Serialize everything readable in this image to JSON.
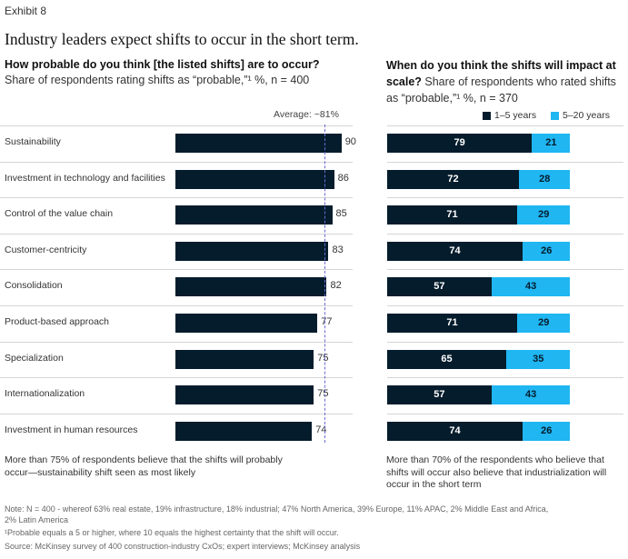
{
  "exhibit": "Exhibit 8",
  "title": "Industry leaders expect shifts to occur in the short term.",
  "left": {
    "question": "How probable do you think [the listed shifts] are to occur?",
    "subtitle": "Share of respondents rating shifts as “probable,”¹ %, n = 400",
    "average_label": "Average: ~81%",
    "footer": "More than 75% of respondents believe that the shifts will probably occur—sustainability shift seen as most likely"
  },
  "right": {
    "question": "When do you think the shifts will impact at scale?",
    "subtitle": " Share of respondents who rated shifts as “probable,”¹ %, n = 370",
    "footer": "More than 70% of the respondents who believe that shifts will occur also believe that industrialization will occur in the short term"
  },
  "notes": {
    "note": "Note: N = 400 - whereof 63% real estate, 19% infrastructure, 18% industrial; 47% North America, 39% Europe, 11% APAC, 2% Middle East and Africa, 2% Latin America",
    "footnote1": "¹Probable equals a 5 or higher, where 10 equals the highest certainty that the shift will occur.",
    "source": "Source: McKinsey survey of 400 construction-industry CxOs; expert interviews; McKinsey analysis"
  },
  "colors": {
    "dark": "#051C2C",
    "light": "#1FB6F2"
  },
  "chart_data": [
    {
      "type": "bar",
      "orientation": "horizontal",
      "title": "How probable do you think [the listed shifts] are to occur?",
      "xlim": [
        0,
        100
      ],
      "average": 81,
      "categories": [
        "Sustainability",
        "Investment in technology and facilities",
        "Control of the value chain",
        "Customer-centricity",
        "Consolidation",
        "Product-based approach",
        "Specialization",
        "Internationalization",
        "Investment in human resources"
      ],
      "values": [
        90,
        86,
        85,
        83,
        82,
        77,
        75,
        75,
        74
      ]
    },
    {
      "type": "bar",
      "orientation": "horizontal",
      "stacked": true,
      "title": "When do you think the shifts will impact at scale?",
      "xlim": [
        0,
        100
      ],
      "legend_position": "top-right",
      "categories": [
        "Sustainability",
        "Investment in technology and facilities",
        "Control of the value chain",
        "Customer-centricity",
        "Consolidation",
        "Product-based approach",
        "Specialization",
        "Internationalization",
        "Investment in human resources"
      ],
      "series": [
        {
          "name": "1–5 years",
          "values": [
            79,
            72,
            71,
            74,
            57,
            71,
            65,
            57,
            74
          ]
        },
        {
          "name": "5–20 years",
          "values": [
            21,
            28,
            29,
            26,
            43,
            29,
            35,
            43,
            26
          ]
        }
      ]
    }
  ]
}
